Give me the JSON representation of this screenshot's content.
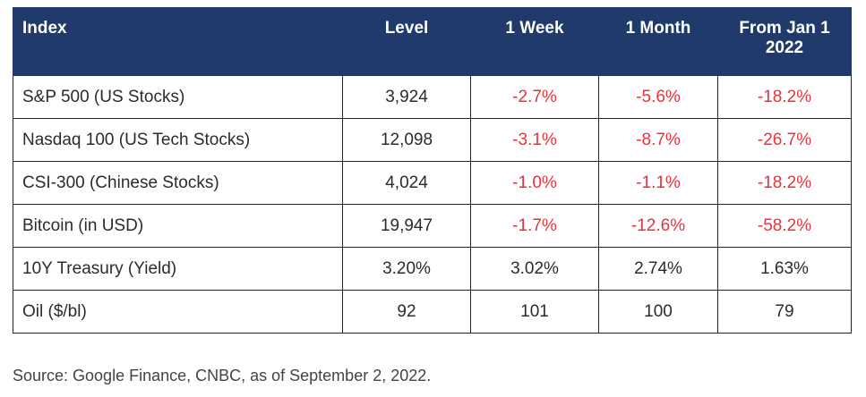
{
  "table": {
    "headers": [
      "Index",
      "Level",
      "1 Week",
      "1 Month",
      "From Jan 1 2022"
    ],
    "rows": [
      {
        "name": "S&P 500 (US Stocks)",
        "level": "3,924",
        "week": "-2.7%",
        "month": "-5.6%",
        "ytd": "-18.2%"
      },
      {
        "name": "Nasdaq 100 (US Tech Stocks)",
        "level": "12,098",
        "week": "-3.1%",
        "month": "-8.7%",
        "ytd": "-26.7%"
      },
      {
        "name": "CSI-300 (Chinese Stocks)",
        "level": "4,024",
        "week": "-1.0%",
        "month": "-1.1%",
        "ytd": "-18.2%"
      },
      {
        "name": "Bitcoin (in USD)",
        "level": "19,947",
        "week": "-1.7%",
        "month": "-12.6%",
        "ytd": "-58.2%"
      },
      {
        "name": "10Y Treasury (Yield)",
        "level": "3.20%",
        "week": "3.02%",
        "month": "2.74%",
        "ytd": "1.63%"
      },
      {
        "name": "Oil ($/bl)",
        "level": "92",
        "week": "101",
        "month": "100",
        "ytd": "79"
      }
    ]
  },
  "source_note": "Source: Google Finance, CNBC, as of September 2, 2022.",
  "colors": {
    "header_bg": "#1f3a6b",
    "header_text": "#ffffff",
    "negative": "#e8323c",
    "border": "#222222"
  }
}
